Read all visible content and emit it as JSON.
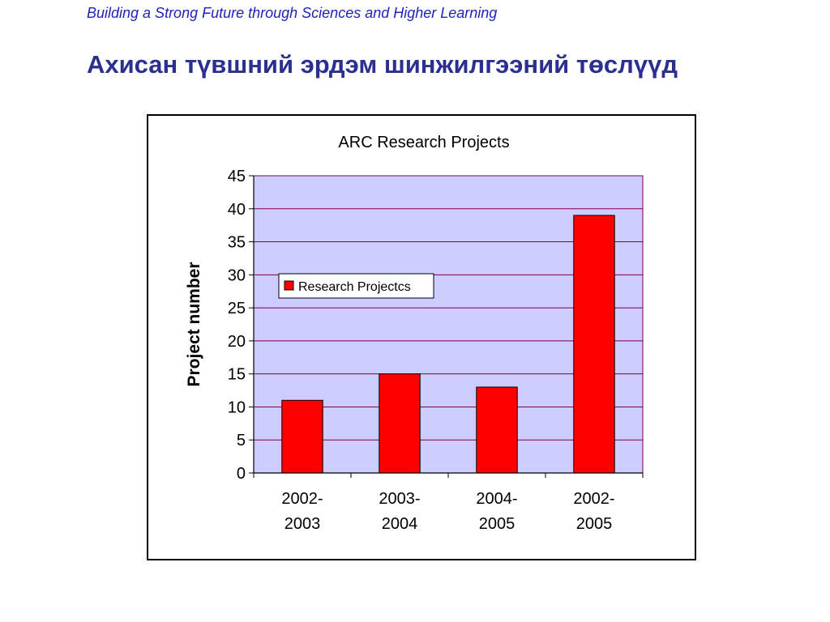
{
  "header": {
    "tagline": "Building a Strong Future through Sciences and Higher Learning",
    "title": "Ахисан түвшний эрдэм шинжилгээний төслүүд"
  },
  "colors": {
    "tagline": "#1f23b8",
    "title": "#2b2f8f",
    "plot_background": "#ccccff",
    "bar_fill": "#ff0000",
    "gridline": "#800040"
  },
  "chart_data": {
    "type": "bar",
    "title": "ARC Research Projects",
    "xlabel": "",
    "ylabel": "Project number",
    "categories": [
      [
        "2002-",
        "2003"
      ],
      [
        "2003-",
        "2004"
      ],
      [
        "2004-",
        "2005"
      ],
      [
        "2002-",
        "2005"
      ]
    ],
    "series": [
      {
        "name": "Research Projectcs",
        "values": [
          11,
          15,
          13,
          39
        ]
      }
    ],
    "ylim": [
      0,
      45
    ],
    "yticks": [
      0,
      5,
      10,
      15,
      20,
      25,
      30,
      35,
      40,
      45
    ],
    "grid": true,
    "legend_position": "upper-left inside plot"
  }
}
